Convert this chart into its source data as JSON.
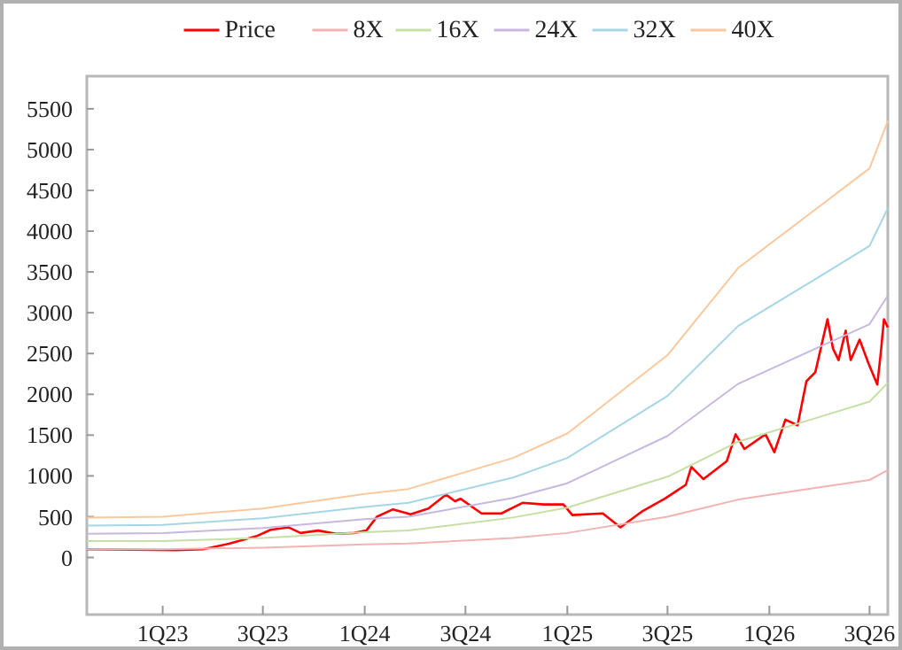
{
  "chart_data": {
    "type": "line",
    "legend": "top",
    "grid": false,
    "line_style": "solid",
    "marker": "none",
    "xlim": [
      "2022-08-17",
      "2026-08-03"
    ],
    "xticks": [
      {
        "value": "2023-01-01",
        "label": "1Q23"
      },
      {
        "value": "2023-07-01",
        "label": "3Q23"
      },
      {
        "value": "2024-01-01",
        "label": "1Q24"
      },
      {
        "value": "2024-07-01",
        "label": "3Q24"
      },
      {
        "value": "2025-01-01",
        "label": "1Q25"
      },
      {
        "value": "2025-07-01",
        "label": "3Q25"
      },
      {
        "value": "2026-01-01",
        "label": "1Q26"
      },
      {
        "value": "2026-07-01",
        "label": "3Q26"
      }
    ],
    "ylim": [
      -700,
      5900
    ],
    "yticks": [
      0,
      500,
      1000,
      1500,
      2000,
      2500,
      3000,
      3500,
      4000,
      4500,
      5000,
      5500
    ],
    "series": [
      {
        "name": "Price",
        "color": "#ff0000",
        "x": [
          "2022-08-17",
          "2023-01-26",
          "2023-03-15",
          "2023-05-02",
          "2023-06-19",
          "2023-07-15",
          "2023-08-16",
          "2023-09-07",
          "2023-10-09",
          "2023-11-10",
          "2023-12-13",
          "2024-01-04",
          "2024-01-23",
          "2024-02-21",
          "2024-03-24",
          "2024-04-25",
          "2024-05-27",
          "2024-06-12",
          "2024-06-22",
          "2024-07-30",
          "2024-09-04",
          "2024-10-12",
          "2024-11-19",
          "2024-12-25",
          "2025-01-10",
          "2025-03-06",
          "2025-04-07",
          "2025-05-15",
          "2025-06-26",
          "2025-08-03",
          "2025-08-13",
          "2025-09-04",
          "2025-10-16",
          "2025-11-01",
          "2025-11-17",
          "2025-12-25",
          "2026-01-10",
          "2026-01-30",
          "2026-02-21",
          "2026-03-09",
          "2026-03-25",
          "2026-04-16",
          "2026-04-26",
          "2026-05-06",
          "2026-05-19",
          "2026-05-28",
          "2026-06-13",
          "2026-06-29",
          "2026-07-15",
          "2026-07-21",
          "2026-07-27",
          "2026-08-03"
        ],
        "values": [
          100,
          90,
          100,
          170,
          260,
          340,
          370,
          300,
          330,
          290,
          300,
          330,
          500,
          590,
          530,
          600,
          770,
          690,
          720,
          540,
          540,
          670,
          650,
          650,
          520,
          540,
          370,
          560,
          720,
          890,
          1110,
          960,
          1180,
          1510,
          1330,
          1510,
          1290,
          1690,
          1620,
          2160,
          2270,
          2920,
          2560,
          2420,
          2780,
          2420,
          2670,
          2380,
          2120,
          2490,
          2920,
          2820
        ]
      },
      {
        "name": "8X",
        "color": "#f2b3b3",
        "x": [
          "2022-08-17",
          "2023-01-01",
          "2023-07-01",
          "2024-01-01",
          "2024-03-20",
          "2024-09-25",
          "2025-01-01",
          "2025-07-01",
          "2025-11-06",
          "2026-03-22",
          "2026-07-01",
          "2026-08-03"
        ],
        "values": [
          100,
          100,
          120,
          160,
          170,
          240,
          300,
          500,
          710,
          850,
          950,
          1070
        ]
      },
      {
        "name": "16X",
        "color": "#c5dfa5",
        "x": [
          "2022-08-17",
          "2023-01-01",
          "2023-07-01",
          "2024-01-01",
          "2024-03-20",
          "2024-09-25",
          "2025-01-01",
          "2025-07-01",
          "2025-11-06",
          "2026-03-22",
          "2026-07-01",
          "2026-08-03"
        ],
        "values": [
          200,
          200,
          240,
          310,
          330,
          490,
          610,
          990,
          1420,
          1700,
          1910,
          2140
        ]
      },
      {
        "name": "24X",
        "color": "#c8b7df",
        "x": [
          "2022-08-17",
          "2023-01-01",
          "2023-07-01",
          "2024-01-01",
          "2024-03-20",
          "2024-09-25",
          "2025-01-01",
          "2025-07-01",
          "2025-11-06",
          "2026-03-22",
          "2026-07-01",
          "2026-08-03"
        ],
        "values": [
          290,
          300,
          360,
          470,
          500,
          730,
          910,
          1490,
          2130,
          2550,
          2860,
          3210
        ]
      },
      {
        "name": "32X",
        "color": "#a6d6e6",
        "x": [
          "2022-08-17",
          "2023-01-01",
          "2023-07-01",
          "2024-01-01",
          "2024-03-20",
          "2024-09-25",
          "2025-01-01",
          "2025-07-01",
          "2025-11-06",
          "2026-03-22",
          "2026-07-01",
          "2026-08-03"
        ],
        "values": [
          390,
          400,
          480,
          620,
          670,
          980,
          1220,
          1980,
          2840,
          3400,
          3820,
          4280
        ]
      },
      {
        "name": "40X",
        "color": "#fbc89e",
        "x": [
          "2022-08-17",
          "2023-01-01",
          "2023-07-01",
          "2024-01-01",
          "2024-03-20",
          "2024-09-25",
          "2025-01-01",
          "2025-07-01",
          "2025-11-06",
          "2026-03-22",
          "2026-07-01",
          "2026-08-03"
        ],
        "values": [
          490,
          500,
          600,
          780,
          840,
          1220,
          1520,
          2480,
          3550,
          4250,
          4770,
          5350
        ]
      }
    ]
  }
}
